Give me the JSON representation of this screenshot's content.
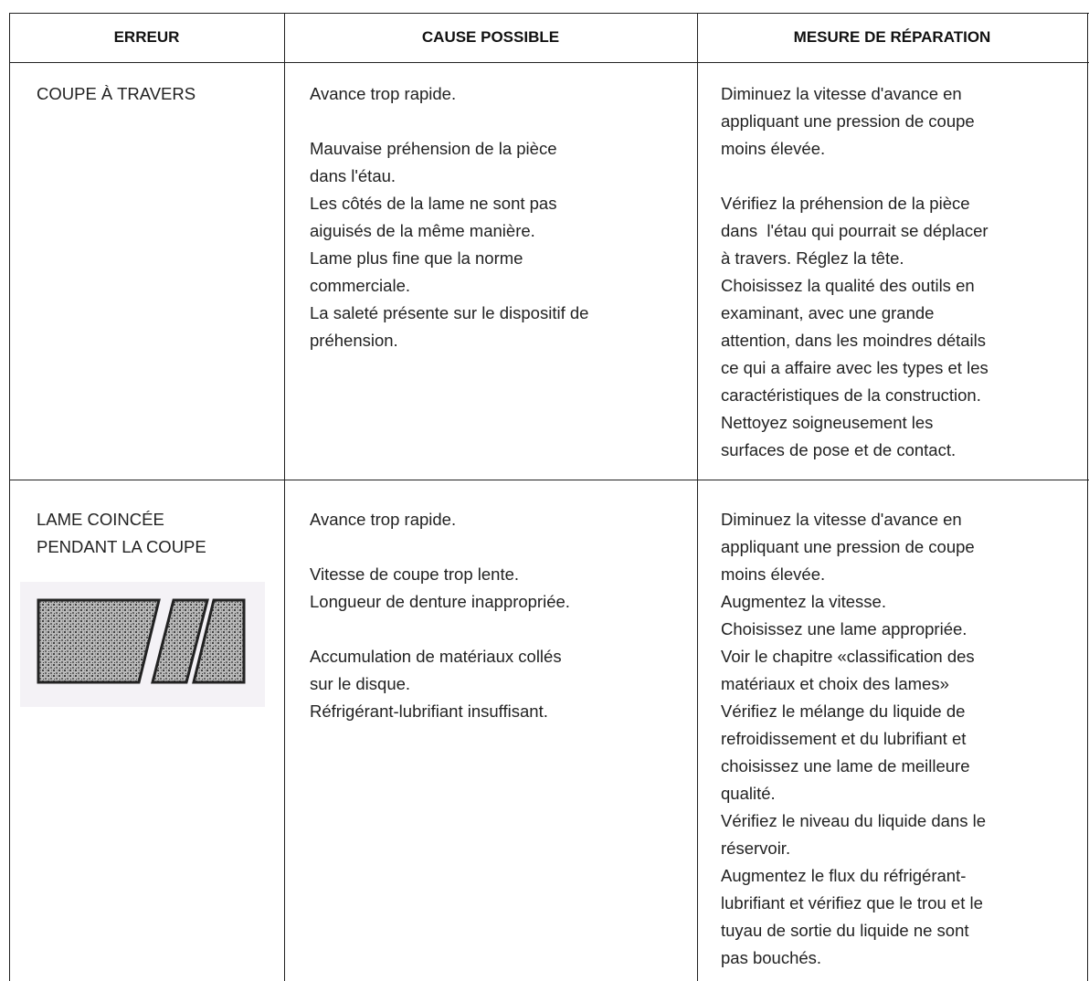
{
  "table": {
    "headers": [
      "ERREUR",
      "CAUSE POSSIBLE",
      "MESURE DE RÉPARATION"
    ],
    "rows": [
      [
        [
          [
            "COUPE À TRAVERS"
          ]
        ],
        [
          [
            "Avance trop rapide."
          ],
          [
            "Mauvaise préhension de la pièce",
            "dans l'étau.",
            "Les côtés de la lame ne sont pas",
            "aiguisés de la même manière.",
            "Lame plus fine que la norme",
            "commerciale.",
            "La saleté présente sur le dispositif de",
            "préhension."
          ]
        ],
        [
          [
            "Diminuez la vitesse d'avance en",
            "appliquant une pression de coupe",
            "moins élevée."
          ],
          [
            "Vérifiez la préhension de la pièce",
            "dans  l'étau qui pourrait se déplacer",
            "à travers. Réglez la tête.",
            "Choisissez la qualité des outils en",
            "examinant, avec une grande",
            "attention, dans les moindres détails",
            "ce qui a affaire avec les types et les",
            "caractéristiques de la construction.",
            "Nettoyez soigneusement les",
            "surfaces de pose et de contact."
          ]
        ]
      ],
      [
        [
          [
            "LAME COINCÉE",
            "PENDANT LA COUPE"
          ]
        ],
        [
          [
            "Avance trop rapide."
          ],
          [
            "Vitesse de coupe trop lente.",
            "Longueur de denture inappropriée."
          ],
          [
            "Accumulation de matériaux collés",
            "sur le disque.",
            "Réfrigérant-lubrifiant insuffisant."
          ]
        ],
        [
          [
            "Diminuez la vitesse d'avance en",
            "appliquant une pression de coupe",
            "moins élevée.",
            "Augmentez la vitesse.",
            "Choisissez une lame appropriée.",
            "Voir le chapitre «classification des",
            "matériaux et choix des lames»",
            "Vérifiez le mélange du liquide de",
            "refroidissement et du lubrifiant et",
            "choisissez une lame de meilleure",
            "qualité.",
            "Vérifiez le niveau du liquide dans le",
            "réservoir.",
            "Augmentez le flux du réfrigérant-",
            "lubrifiant et vérifiez que le trou et le",
            "tuyau de sortie du liquide ne sont",
            "pas bouchés."
          ]
        ]
      ]
    ]
  }
}
